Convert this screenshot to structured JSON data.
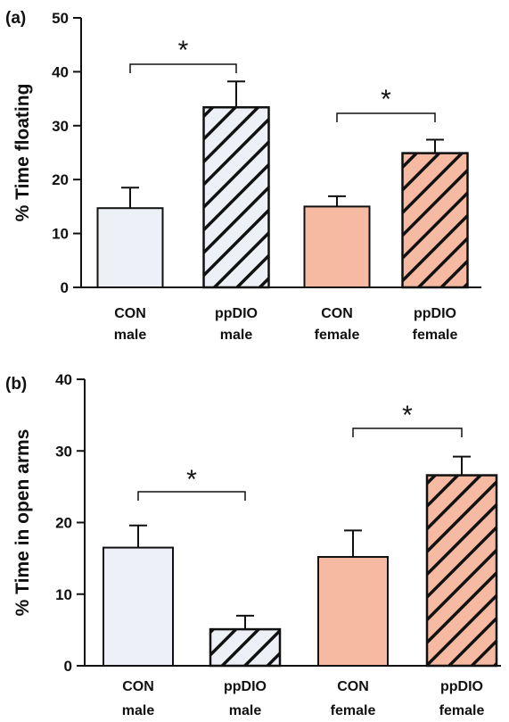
{
  "chart_data": [
    {
      "panel_label": "(a)",
      "type": "bar",
      "categories": [
        "CON male",
        "ppDIO male",
        "CON female",
        "ppDIO female"
      ],
      "category_lines": [
        [
          "CON",
          "male"
        ],
        [
          "ppDIO",
          "male"
        ],
        [
          "CON",
          "female"
        ],
        [
          "ppDIO",
          "female"
        ]
      ],
      "values": [
        14.7,
        33.4,
        15.0,
        24.9
      ],
      "errors": [
        3.8,
        4.8,
        1.9,
        2.5
      ],
      "ylabel": "% Time floating",
      "xlabel": "",
      "ylim": [
        0,
        50
      ],
      "yticks": [
        "0",
        "10",
        "20",
        "30",
        "40",
        "50"
      ],
      "fill_colors": [
        "#eef0f8",
        "#eef0f8",
        "#f6b9a2",
        "#f6b9a2"
      ],
      "hatched": [
        false,
        true,
        false,
        true
      ],
      "significance": [
        {
          "between": [
            0,
            1
          ],
          "label": "*"
        },
        {
          "between": [
            2,
            3
          ],
          "label": "*"
        }
      ],
      "grid": false
    },
    {
      "panel_label": "(b)",
      "type": "bar",
      "categories": [
        "CON male",
        "ppDIO male",
        "CON female",
        "ppDIO female"
      ],
      "category_lines": [
        [
          "CON",
          "male"
        ],
        [
          "ppDIO",
          "male"
        ],
        [
          "CON",
          "female"
        ],
        [
          "ppDIO",
          "female"
        ]
      ],
      "values": [
        16.5,
        5.1,
        15.2,
        26.6
      ],
      "errors": [
        3.1,
        1.9,
        3.7,
        2.6
      ],
      "ylabel": "% Time in open arms",
      "xlabel": "",
      "ylim": [
        0,
        40
      ],
      "yticks": [
        "0",
        "10",
        "20",
        "30",
        "40"
      ],
      "fill_colors": [
        "#eef0f8",
        "#eef0f8",
        "#f6b9a2",
        "#f6b9a2"
      ],
      "hatched": [
        false,
        true,
        false,
        true
      ],
      "significance": [
        {
          "between": [
            0,
            1
          ],
          "label": "*"
        },
        {
          "between": [
            2,
            3
          ],
          "label": "*"
        }
      ],
      "grid": false
    }
  ]
}
